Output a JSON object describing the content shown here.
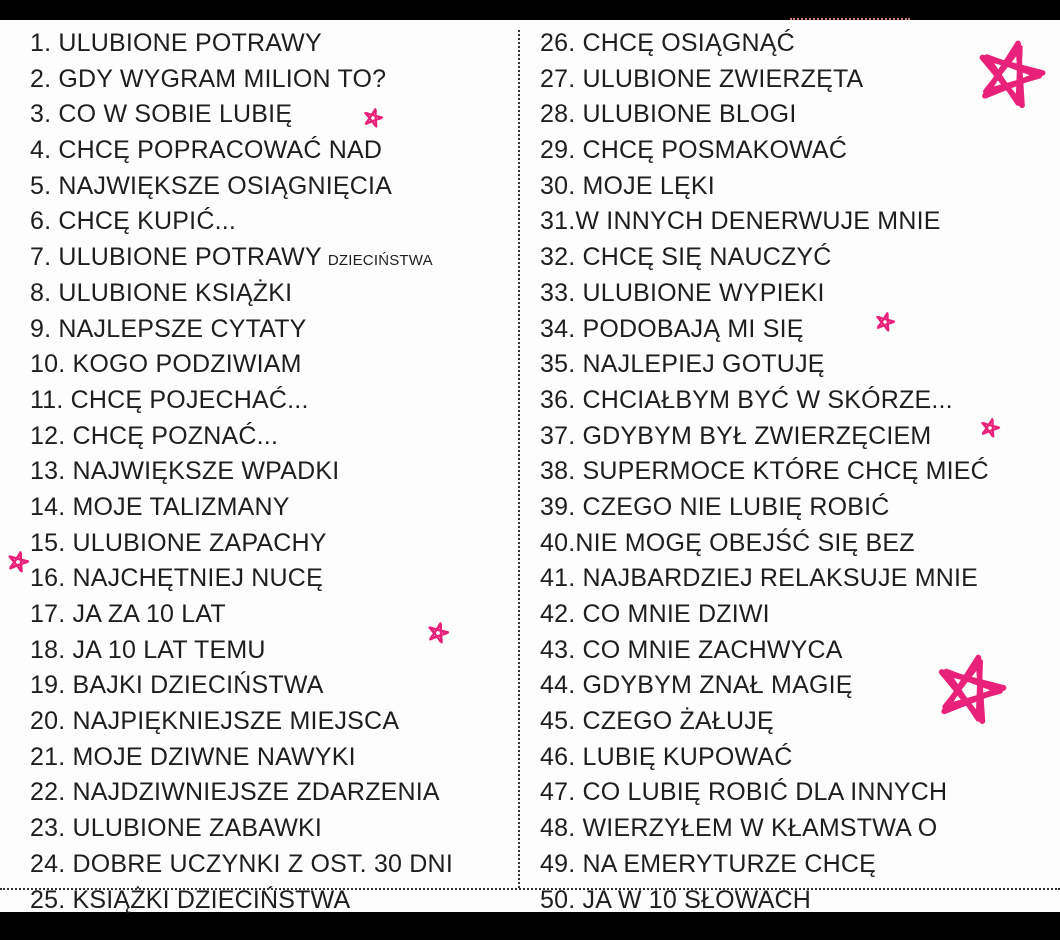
{
  "left_items": [
    "1. ULUBIONE POTRAWY",
    "2. GDY WYGRAM MILION TO?",
    "3. CO W SOBIE LUBIĘ",
    "4. CHCĘ POPRACOWAĆ NAD",
    "5. NAJWIĘKSZE OSIĄGNIĘCIA",
    "6. CHCĘ KUPIĆ...",
    "7. ULUBIONE POTRAWY",
    "8. ULUBIONE KSIĄŻKI",
    "9. NAJLEPSZE CYTATY",
    "10. KOGO PODZIWIAM",
    "11. CHCĘ POJECHAĆ...",
    "12. CHCĘ POZNAĆ...",
    "13. NAJWIĘKSZE WPADKI",
    "14. MOJE TALIZMANY",
    "15. ULUBIONE ZAPACHY",
    "16. NAJCHĘTNIEJ NUCĘ",
    "17. JA ZA 10 LAT",
    "18. JA 10 LAT TEMU",
    "19. BAJKI DZIECIŃSTWA",
    "20. NAJPIĘKNIEJSZE MIEJSCA",
    "21. MOJE DZIWNE NAWYKI",
    "22. NAJDZIWNIEJSZE ZDARZENIA",
    "23. ULUBIONE ZABAWKI",
    "24. DOBRE UCZYNKI Z OST. 30 DNI",
    "25. KSIĄŻKI DZIECIŃSTWA"
  ],
  "item7_suffix": "DZIECIŃSTWA",
  "right_items": [
    "26. CHCĘ OSIĄGNĄĆ",
    "27. ULUBIONE ZWIERZĘTA",
    "28. ULUBIONE BLOGI",
    "29. CHCĘ POSMAKOWAĆ",
    "30. MOJE LĘKI",
    "31.W INNYCH DENERWUJE MNIE",
    "32. CHCĘ SIĘ NAUCZYĆ",
    "33. ULUBIONE WYPIEKI",
    "34. PODOBAJĄ MI SIĘ",
    "35. NAJLEPIEJ GOTUJĘ",
    "36. CHCIAŁBYM BYĆ W SKÓRZE...",
    "37. GDYBYM BYŁ ZWIERZĘCIEM",
    "38. SUPERMOCE KTÓRE CHCĘ MIEĆ",
    "39. CZEGO NIE LUBIĘ ROBIĆ",
    "40.NIE MOGĘ OBEJŚĆ SIĘ BEZ",
    "41. NAJBARDZIEJ RELAKSUJE MNIE",
    "42. CO MNIE DZIWI",
    "43. CO MNIE ZACHWYCA",
    "44. GDYBYM ZNAŁ MAGIĘ",
    "45. CZEGO ŻAŁUJĘ",
    "46. LUBIĘ KUPOWAĆ",
    "47. CO LUBIĘ ROBIĆ DLA INNYCH",
    "48. WIERZYŁEM W KŁAMSTWA O",
    "49. NA EMERYTURZE CHCĘ",
    "50. JA W 10 SŁOWACH"
  ],
  "colors": {
    "star": "#e8217a",
    "text": "#1e1e1e",
    "frame": "#000000"
  },
  "decorations": [
    "star-icon"
  ]
}
